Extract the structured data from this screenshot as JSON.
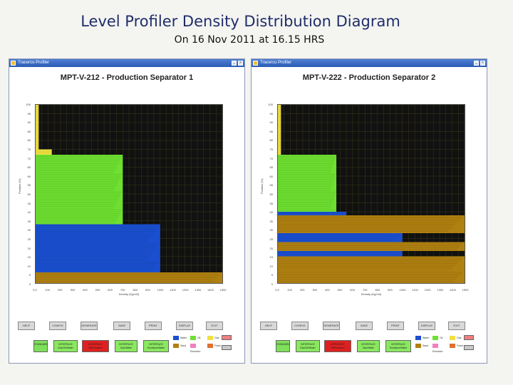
{
  "slide": {
    "title": "Level Profiler Density Distribution Diagram",
    "subtitle": "On 16 Nov 2011 at 16.15 HRS"
  },
  "windows": [
    {
      "app_title": "Tracerco Profiler",
      "chart_title": "MPT-V-212 - Production Separator 1",
      "y_ticks": [
        "100",
        "95",
        "90",
        "85",
        "80",
        "75",
        "70",
        "65",
        "60",
        "55",
        "50",
        "45",
        "40",
        "35",
        "30",
        "25",
        "20",
        "15",
        "10",
        "5",
        "0"
      ],
      "x_ticks": [
        "0.0",
        "100",
        "200",
        "300",
        "400",
        "500",
        "600",
        "700",
        "800",
        "900",
        "1000",
        "1100",
        "1200",
        "1300",
        "1400",
        "1500"
      ],
      "x_label": "Density (Kg/m3)",
      "y_label": "Position (%)",
      "buttons": [
        "HELP",
        "CONFIG",
        "GENERATE",
        "SAVE",
        "PRINT",
        "DISPLAY",
        "EXIT"
      ],
      "status_boxes": [
        {
          "label": "STANDARD",
          "color": "#7ee05a"
        },
        {
          "label": "INTERFACE Gas/Oil/Water",
          "color": "#8ae860"
        },
        {
          "label": "INTERFACE Oil/Emulsion",
          "color": "#e02020"
        },
        {
          "label": "INTERFACE Gas/Water",
          "color": "#8ae860"
        },
        {
          "label": "INTERFACE Emulsion/Water",
          "color": "#8ae860"
        }
      ],
      "legend": [
        {
          "label": "Water",
          "color": "#1a4fd0"
        },
        {
          "label": "Oil",
          "color": "#6ee030"
        },
        {
          "label": "Gas",
          "color": "#f0e040"
        },
        {
          "label": "Sand",
          "color": "#b08010"
        },
        {
          "label": "Emulsion",
          "color": "#f080c0"
        },
        {
          "label": "Foam",
          "color": "#e07030"
        }
      ],
      "chart_data": {
        "type": "bar",
        "orientation": "horizontal",
        "x_range": [
          0,
          1500
        ],
        "y_range": [
          0,
          100
        ],
        "layers": [
          {
            "from": 0,
            "to": 6,
            "material": "sand",
            "density": 1500
          },
          {
            "from": 6,
            "to": 33,
            "material": "water",
            "density": 1000
          },
          {
            "from": 33,
            "to": 72,
            "material": "oil",
            "density": 700
          },
          {
            "from": 72,
            "to": 75,
            "material": "gas",
            "density": 130
          },
          {
            "from": 75,
            "to": 100,
            "material": "gas",
            "density": 25
          }
        ]
      }
    },
    {
      "app_title": "Tracerco Profiler",
      "chart_title": "MPT-V-222 - Production Separator 2",
      "y_ticks": [
        "100",
        "95",
        "90",
        "85",
        "80",
        "75",
        "70",
        "65",
        "60",
        "55",
        "50",
        "45",
        "40",
        "35",
        "30",
        "25",
        "20",
        "15",
        "10",
        "5",
        "0"
      ],
      "x_ticks": [
        "0.0",
        "100",
        "200",
        "300",
        "400",
        "500",
        "600",
        "700",
        "800",
        "900",
        "1000",
        "1100",
        "1200",
        "1300",
        "1400",
        "1500"
      ],
      "x_label": "Density (Kg/m3)",
      "y_label": "Position (%)",
      "buttons": [
        "HELP",
        "CONFIG",
        "GENERATE",
        "SAVE",
        "PRINT",
        "DISPLAY",
        "EXIT"
      ],
      "status_boxes": [
        {
          "label": "STANDARD",
          "color": "#7ee05a"
        },
        {
          "label": "INTERFACE Gas/Oil/Water",
          "color": "#8ae860"
        },
        {
          "label": "INTERFACE Oil/Emulsion",
          "color": "#e02020"
        },
        {
          "label": "INTERFACE Gas/Water",
          "color": "#8ae860"
        },
        {
          "label": "INTERFACE Emulsion/Water",
          "color": "#8ae860"
        }
      ],
      "legend": [
        {
          "label": "Water",
          "color": "#1a4fd0"
        },
        {
          "label": "Oil",
          "color": "#6ee030"
        },
        {
          "label": "Gas",
          "color": "#f0e040"
        },
        {
          "label": "Sand",
          "color": "#b08010"
        },
        {
          "label": "Emulsion",
          "color": "#f080c0"
        },
        {
          "label": "Foam",
          "color": "#e07030"
        }
      ],
      "chart_data": {
        "type": "bar",
        "orientation": "horizontal",
        "x_range": [
          0,
          1500
        ],
        "y_range": [
          0,
          100
        ],
        "layers": [
          {
            "from": 0,
            "to": 7,
            "material": "sand",
            "density": 1500
          },
          {
            "from": 7,
            "to": 15,
            "material": "sand",
            "density": 1500
          },
          {
            "from": 15,
            "to": 18,
            "material": "water",
            "density": 1000
          },
          {
            "from": 18,
            "to": 23,
            "material": "sand",
            "density": 1500
          },
          {
            "from": 23,
            "to": 28,
            "material": "water",
            "density": 1000
          },
          {
            "from": 28,
            "to": 38,
            "material": "sand",
            "density": 1500
          },
          {
            "from": 38,
            "to": 40,
            "material": "water",
            "density": 550
          },
          {
            "from": 40,
            "to": 72,
            "material": "oil",
            "density": 470
          },
          {
            "from": 72,
            "to": 100,
            "material": "gas",
            "density": 25
          }
        ]
      }
    }
  ]
}
